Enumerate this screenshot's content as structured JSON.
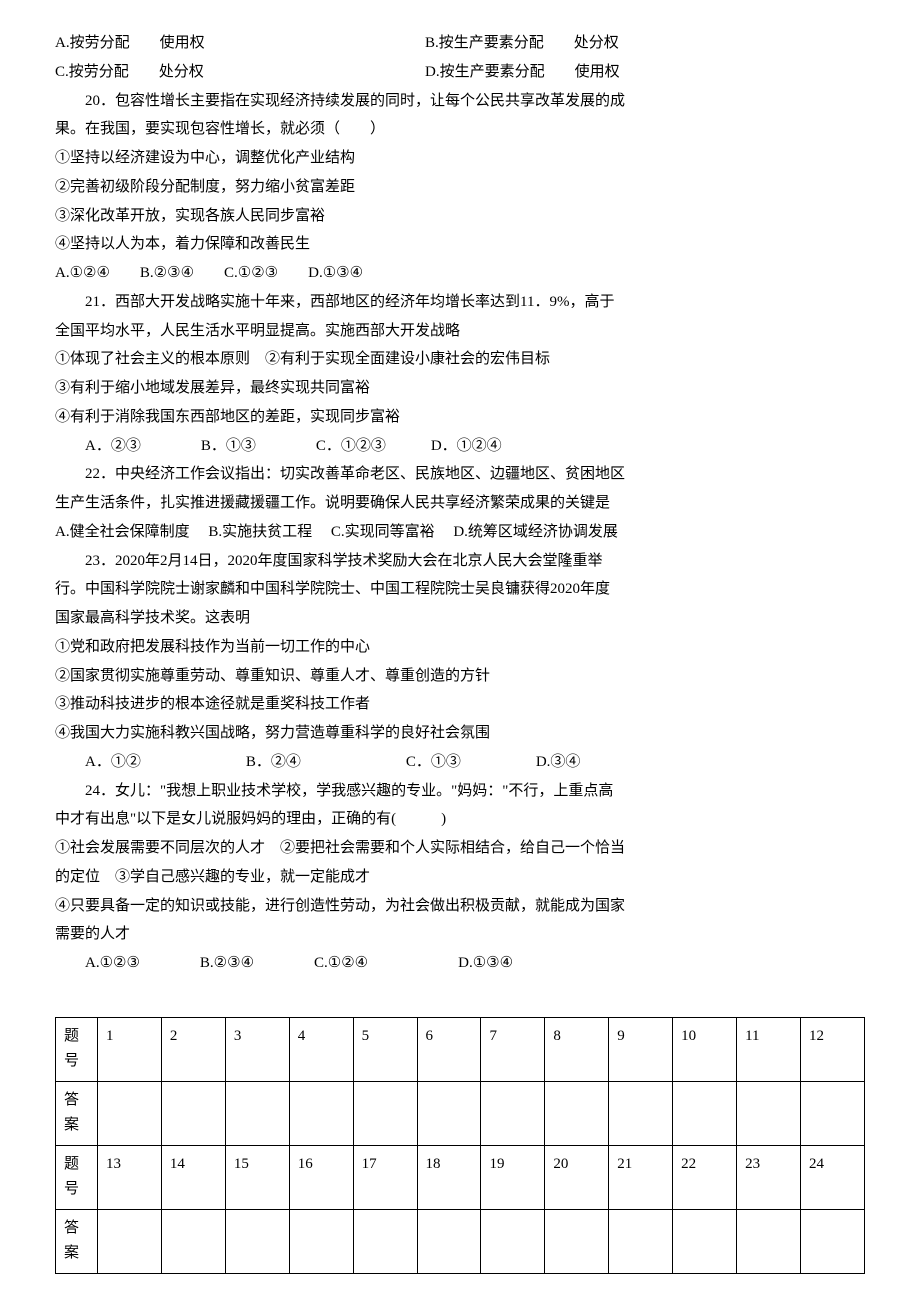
{
  "q19_options": {
    "a": "A.按劳分配　　使用权",
    "b": "B.按生产要素分配　　处分权",
    "c": "C.按劳分配　　处分权",
    "d": "D.按生产要素分配　　使用权"
  },
  "q20": {
    "stem_l1": "20．包容性增长主要指在实现经济持续发展的同时，让每个公民共享改革发展的成",
    "stem_l2": "果。在我国，要实现包容性增长，就必须（　　）",
    "s1": "①坚持以经济建设为中心，调整优化产业结构",
    "s2": "②完善初级阶段分配制度，努力缩小贫富差距",
    "s3": "③深化改革开放，实现各族人民同步富裕",
    "s4": "④坚持以人为本，着力保障和改善民生",
    "opts": "A.①②④　　B.②③④　　C.①②③　　D.①③④"
  },
  "q21": {
    "stem_l1": "21．西部大开发战略实施十年来，西部地区的经济年均增长率达到11．9%，高于",
    "stem_l2": "全国平均水平，人民生活水平明显提高。实施西部大开发战略",
    "s1": "①体现了社会主义的根本原则　②有利于实现全面建设小康社会的宏伟目标",
    "s2": "③有利于缩小地域发展差异，最终实现共同富裕",
    "s3": "④有利于消除我国东西部地区的差距，实现同步富裕",
    "opts": "A．②③　　　　B．①③　　　　C．①②③　　　D．①②④"
  },
  "q22": {
    "stem_l1": "22．中央经济工作会议指出：切实改善革命老区、民族地区、边疆地区、贫困地区",
    "stem_l2": "生产生活条件，扎实推进援藏援疆工作。说明要确保人民共享经济繁荣成果的关键是",
    "opts": "A.健全社会保障制度　 B.实施扶贫工程　 C.实现同等富裕　 D.统筹区域经济协调发展"
  },
  "q23": {
    "stem_l1": "23．2020年2月14日，2020年度国家科学技术奖励大会在北京人民大会堂隆重举",
    "stem_l2": "行。中国科学院院士谢家麟和中国科学院院士、中国工程院院士吴良镛获得2020年度",
    "stem_l3": "国家最高科学技术奖。这表明",
    "s1": "①党和政府把发展科技作为当前一切工作的中心",
    "s2": "②国家贯彻实施尊重劳动、尊重知识、尊重人才、尊重创造的方针",
    "s3": "③推动科技进步的根本途径就是重奖科技工作者",
    "s4": "④我国大力实施科教兴国战略，努力营造尊重科学的良好社会氛围",
    "opts": "A．①②　　　　　　　B．②④　　　　　　　C．①③　　　　　D.③④"
  },
  "q24": {
    "stem_l1": "24．女儿：\"我想上职业技术学校，学我感兴趣的专业。\"妈妈：\"不行，上重点高",
    "stem_l2": "中才有出息\"以下是女儿说服妈妈的理由，正确的有(　　　)",
    "stem_l3": "①社会发展需要不同层次的人才　②要把社会需要和个人实际相结合，给自己一个恰当",
    "stem_l4": "的定位　③学自己感兴趣的专业，就一定能成才",
    "stem_l5": "④只要具备一定的知识或技能，进行创造性劳动，为社会做出积极贡献，就能成为国家",
    "stem_l6": "需要的人才",
    "opts": "A.①②③　　　　B.②③④　　　　C.①②④　　　　　　D.①③④"
  },
  "table": {
    "label1": "题号",
    "label2": "答案",
    "row1": [
      "1",
      "2",
      "3",
      "4",
      "5",
      "6",
      "7",
      "8",
      "9",
      "10",
      "11",
      "12"
    ],
    "row2": [
      "13",
      "14",
      "15",
      "16",
      "17",
      "18",
      "19",
      "20",
      "21",
      "22",
      "23",
      "24"
    ]
  }
}
